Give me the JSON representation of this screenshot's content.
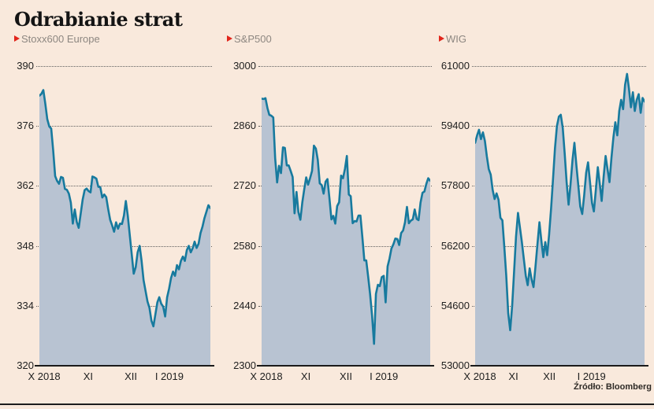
{
  "title": "Odrabianie strat",
  "source": "Źródło: Bloomberg",
  "colors": {
    "background": "#f9e9dc",
    "line": "#177a9e",
    "fill": "#b8c3d2",
    "grid": "#5f5f5f",
    "axis": "#1a1a1a",
    "tick_text": "#1e1e1e",
    "series_label_text": "#8d8781",
    "marker_red": "#e1251b"
  },
  "chart_data": [
    {
      "type": "area",
      "label": "Stoxx600 Europe",
      "ylim": [
        320,
        390
      ],
      "y_ticks": [
        390,
        376,
        362,
        348,
        334,
        320
      ],
      "x_ticks": [
        "X 2018",
        "XI",
        "XII",
        "I 2019"
      ],
      "grid": "dotted-horizontal",
      "legend": "none",
      "values": [
        383.1,
        383.5,
        384.4,
        381.2,
        377.6,
        375.9,
        375.4,
        370.3,
        364.3,
        363.2,
        362.5,
        364.1,
        363.9,
        361.3,
        361.1,
        360.2,
        358.1,
        353.2,
        356.5,
        353.6,
        352.2,
        355.5,
        358.8,
        361.0,
        361.4,
        360.8,
        360.5,
        364.2,
        364.0,
        363.7,
        361.8,
        361.7,
        359.3,
        360.0,
        359.4,
        356.6,
        354.1,
        352.8,
        351.3,
        353.5,
        352.0,
        353.2,
        353.1,
        355.1,
        358.5,
        355.0,
        350.5,
        346.0,
        341.5,
        343.0,
        346.5,
        348.0,
        344.5,
        340.0,
        337.5,
        335.0,
        333.5,
        330.5,
        329.2,
        332.0,
        334.8,
        336.0,
        334.5,
        333.8,
        331.5,
        336.0,
        338.0,
        340.5,
        342.0,
        341.0,
        343.5,
        342.5,
        344.5,
        345.5,
        344.5,
        347.0,
        348.0,
        346.5,
        347.5,
        349.0,
        347.5,
        348.5,
        351.0,
        352.5,
        354.5,
        356.0,
        357.5,
        356.8
      ]
    },
    {
      "type": "area",
      "label": "S&P500",
      "ylim": [
        2300,
        3000
      ],
      "y_ticks": [
        3000,
        2860,
        2720,
        2580,
        2440,
        2300
      ],
      "x_ticks": [
        "X 2018",
        "XI",
        "XII",
        "I 2019"
      ],
      "grid": "dotted-horizontal",
      "legend": "none",
      "values": [
        2924,
        2923,
        2925,
        2902,
        2886,
        2884,
        2880,
        2785,
        2728,
        2767,
        2750,
        2810,
        2809,
        2768,
        2768,
        2755,
        2741,
        2656,
        2706,
        2659,
        2641,
        2682,
        2712,
        2740,
        2723,
        2738,
        2755,
        2814,
        2807,
        2781,
        2726,
        2722,
        2702,
        2730,
        2736,
        2691,
        2642,
        2650,
        2632,
        2673,
        2682,
        2744,
        2738,
        2760,
        2790,
        2700,
        2696,
        2633,
        2638,
        2637,
        2651,
        2651,
        2600,
        2546,
        2546,
        2507,
        2467,
        2417,
        2351,
        2468,
        2489,
        2486,
        2507,
        2510,
        2448,
        2532,
        2550,
        2574,
        2584,
        2597,
        2596,
        2582,
        2610,
        2616,
        2635,
        2671,
        2633,
        2639,
        2642,
        2665,
        2643,
        2640,
        2681,
        2704,
        2707,
        2725,
        2738,
        2732
      ]
    },
    {
      "type": "area",
      "label": "WIG",
      "ylim": [
        53000,
        61000
      ],
      "y_ticks": [
        61000,
        59400,
        57800,
        56200,
        54600,
        53000
      ],
      "x_ticks": [
        "X 2018",
        "XI",
        "XII",
        "I 2019"
      ],
      "grid": "dotted-horizontal",
      "legend": "none",
      "values": [
        58950,
        59150,
        59300,
        59050,
        59230,
        59000,
        58600,
        58250,
        58100,
        57700,
        57450,
        57600,
        57430,
        56950,
        56880,
        56150,
        55400,
        54400,
        53950,
        54600,
        55500,
        56450,
        57080,
        56700,
        56300,
        55850,
        55400,
        55150,
        55600,
        55300,
        55100,
        55650,
        56250,
        56830,
        56350,
        55900,
        56300,
        55950,
        56500,
        57200,
        58000,
        58800,
        59400,
        59650,
        59700,
        59350,
        58650,
        57900,
        57300,
        57850,
        58500,
        58950,
        58350,
        57800,
        57250,
        57050,
        57550,
        58150,
        58430,
        57900,
        57350,
        57120,
        57700,
        58300,
        57850,
        57400,
        58050,
        58600,
        58250,
        57900,
        58550,
        59100,
        59500,
        59150,
        59800,
        60100,
        59850,
        60500,
        60790,
        60400,
        59900,
        60300,
        59800,
        60100,
        60250,
        59750,
        60150,
        60050
      ]
    }
  ]
}
